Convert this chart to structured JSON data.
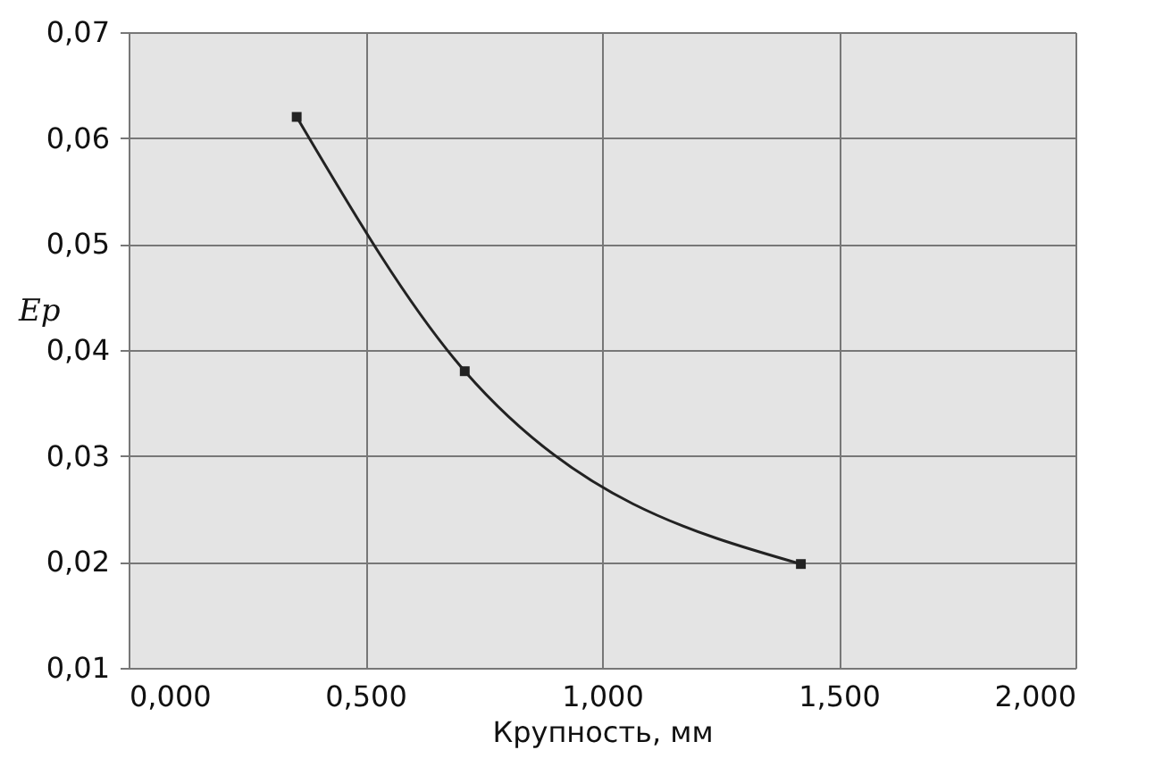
{
  "chart_data": {
    "type": "line",
    "xlabel": "Крупность, мм",
    "ylabel": "Ep",
    "series": [
      {
        "color": "#222222",
        "x": [
          0.355,
          0.71,
          1.42
        ],
        "values": [
          0.062,
          0.038,
          0.0198
        ]
      }
    ],
    "xlim": [
      0,
      2
    ],
    "xticks": [
      {
        "value": 0,
        "label": "0,000"
      },
      {
        "value": 0.5,
        "label": "0,500"
      },
      {
        "value": 1,
        "label": "1,000"
      },
      {
        "value": 1.5,
        "label": "1,500"
      },
      {
        "value": 2,
        "label": "2,000"
      }
    ],
    "ylim": [
      0.01,
      0.07
    ],
    "yticks": [
      {
        "value": 0.01,
        "label": "0,01"
      },
      {
        "value": 0.02,
        "label": "0,02"
      },
      {
        "value": 0.03,
        "label": "0,03"
      },
      {
        "value": 0.04,
        "label": "0,04"
      },
      {
        "value": 0.05,
        "label": "0,05"
      },
      {
        "value": 0.06,
        "label": "0,06"
      },
      {
        "value": 0.07,
        "label": "0,07"
      }
    ],
    "grid": true,
    "marker": "square",
    "line_style": "solid"
  }
}
